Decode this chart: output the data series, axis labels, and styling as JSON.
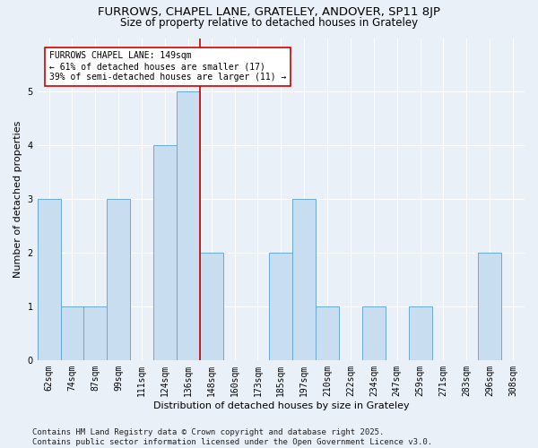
{
  "title": "FURROWS, CHAPEL LANE, GRATELEY, ANDOVER, SP11 8JP",
  "subtitle": "Size of property relative to detached houses in Grateley",
  "xlabel": "Distribution of detached houses by size in Grateley",
  "ylabel": "Number of detached properties",
  "footer": "Contains HM Land Registry data © Crown copyright and database right 2025.\nContains public sector information licensed under the Open Government Licence v3.0.",
  "categories": [
    "62sqm",
    "74sqm",
    "87sqm",
    "99sqm",
    "111sqm",
    "124sqm",
    "136sqm",
    "148sqm",
    "160sqm",
    "173sqm",
    "185sqm",
    "197sqm",
    "210sqm",
    "222sqm",
    "234sqm",
    "247sqm",
    "259sqm",
    "271sqm",
    "283sqm",
    "296sqm",
    "308sqm"
  ],
  "values": [
    3,
    1,
    1,
    3,
    0,
    4,
    5,
    2,
    0,
    0,
    2,
    3,
    1,
    0,
    1,
    0,
    1,
    0,
    0,
    2,
    0
  ],
  "bar_color": "#c9ddf0",
  "bar_edge_color": "#6aaad4",
  "highlight_index": 7,
  "highlight_line_color": "#cc0000",
  "annotation_text": "FURROWS CHAPEL LANE: 149sqm\n← 61% of detached houses are smaller (17)\n39% of semi-detached houses are larger (11) →",
  "annotation_box_color": "#ffffff",
  "annotation_box_edge_color": "#cc0000",
  "ylim": [
    0,
    6
  ],
  "yticks": [
    0,
    1,
    2,
    3,
    4,
    5,
    6
  ],
  "background_color": "#eaf0f8",
  "grid_color": "#ffffff",
  "title_fontsize": 9.5,
  "subtitle_fontsize": 8.5,
  "axis_label_fontsize": 8,
  "tick_fontsize": 7,
  "annotation_fontsize": 7,
  "footer_fontsize": 6.5
}
